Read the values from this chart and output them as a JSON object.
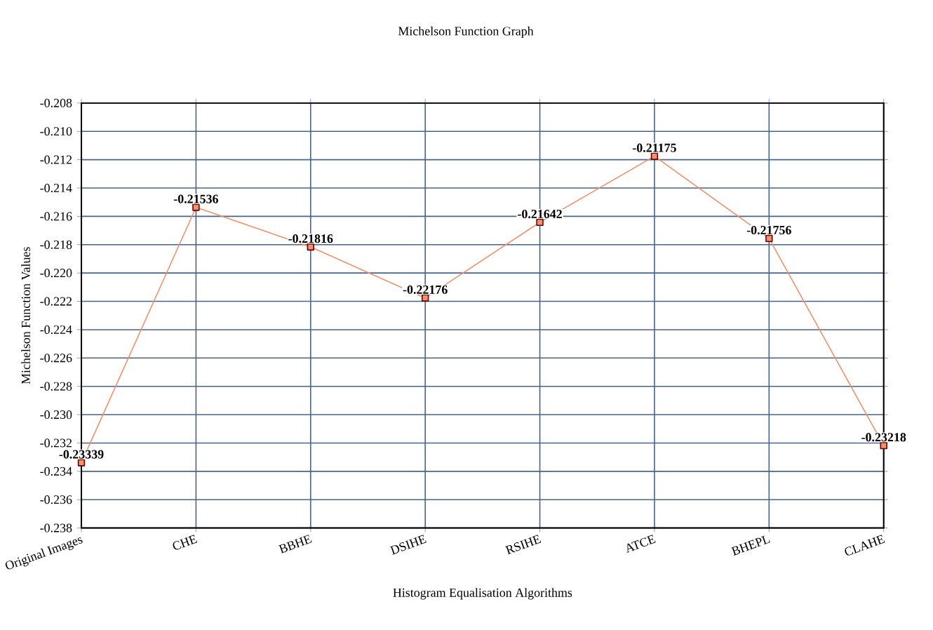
{
  "chart_data": {
    "type": "line",
    "title": "Michelson Function Graph",
    "xlabel": "Histogram Equalisation Algorithms",
    "ylabel": "Michelson Function Values",
    "categories": [
      "Original Images",
      "CHE",
      "BBHE",
      "DSIHE",
      "RSIHE",
      "ATCE",
      "BHEPL",
      "CLAHE"
    ],
    "series": [
      {
        "color": "#f4906c",
        "values": [
          -0.23339,
          -0.21536,
          -0.21816,
          -0.22176,
          -0.21642,
          -0.21175,
          -0.21756,
          -0.23218
        ]
      }
    ],
    "ylim": [
      -0.238,
      -0.208
    ],
    "yticks": [
      {
        "value": -0.238,
        "label": "-0.238"
      },
      {
        "value": -0.236,
        "label": "-0.236"
      },
      {
        "value": -0.234,
        "label": "-0.234"
      },
      {
        "value": -0.232,
        "label": "-0.232"
      },
      {
        "value": -0.23,
        "label": "-0.230"
      },
      {
        "value": -0.228,
        "label": "-0.228"
      },
      {
        "value": -0.226,
        "label": "-0.226"
      },
      {
        "value": -0.224,
        "label": "-0.224"
      },
      {
        "value": -0.222,
        "label": "-0.222"
      },
      {
        "value": -0.22,
        "label": "-0.220"
      },
      {
        "value": -0.218,
        "label": "-0.218"
      },
      {
        "value": -0.216,
        "label": "-0.216"
      },
      {
        "value": -0.214,
        "label": "-0.214"
      },
      {
        "value": -0.212,
        "label": "-0.212"
      },
      {
        "value": -0.21,
        "label": "-0.210"
      },
      {
        "value": -0.208,
        "label": "-0.208"
      }
    ],
    "grid": true,
    "marker": "square",
    "line_style": "solid",
    "data_labels": true
  }
}
